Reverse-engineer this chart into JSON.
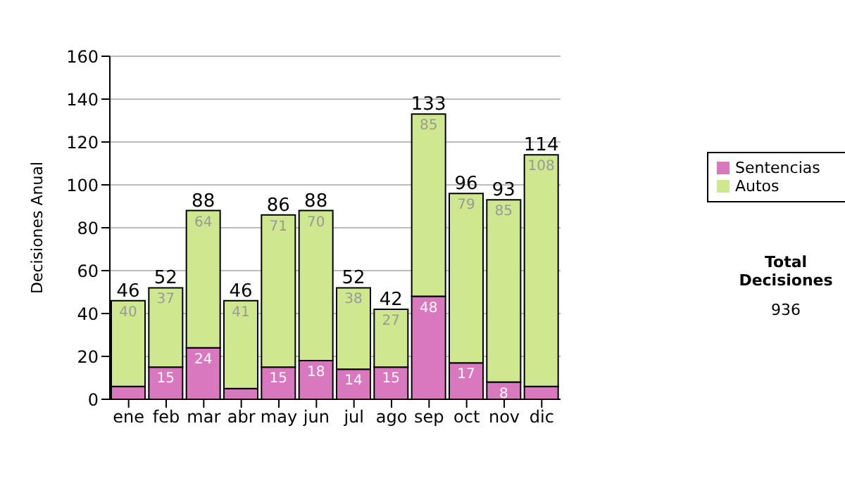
{
  "chart_data": {
    "type": "bar",
    "stacked": true,
    "ylabel": "Decisiones Anual",
    "categories": [
      "ene",
      "feb",
      "mar",
      "abr",
      "may",
      "jun",
      "jul",
      "ago",
      "sep",
      "oct",
      "nov",
      "dic"
    ],
    "series": [
      {
        "name": "Sentencias",
        "color": "#d977bf",
        "values": [
          6,
          15,
          24,
          5,
          15,
          18,
          14,
          15,
          48,
          17,
          8,
          6
        ],
        "value_labels": [
          null,
          "15",
          "24",
          null,
          "15",
          "18",
          "14",
          "15",
          "48",
          "17",
          "8",
          null
        ]
      },
      {
        "name": "Autos",
        "color": "#cfe88f",
        "values": [
          40,
          37,
          64,
          41,
          71,
          70,
          38,
          27,
          85,
          79,
          85,
          108
        ],
        "value_labels": [
          "40",
          "37",
          "64",
          "41",
          "71",
          "70",
          "38",
          "27",
          "85",
          "79",
          "85",
          "108"
        ]
      }
    ],
    "totals": [
      "46",
      "52",
      "88",
      "46",
      "86",
      "88",
      "52",
      "42",
      "133",
      "96",
      "93",
      "114"
    ],
    "ylim": [
      0,
      160
    ],
    "yticks": [
      0,
      20,
      40,
      60,
      80,
      100,
      120,
      140,
      160
    ],
    "grid": "y",
    "legend": "right",
    "annotations": [
      "Total Decisiones",
      "936"
    ]
  }
}
